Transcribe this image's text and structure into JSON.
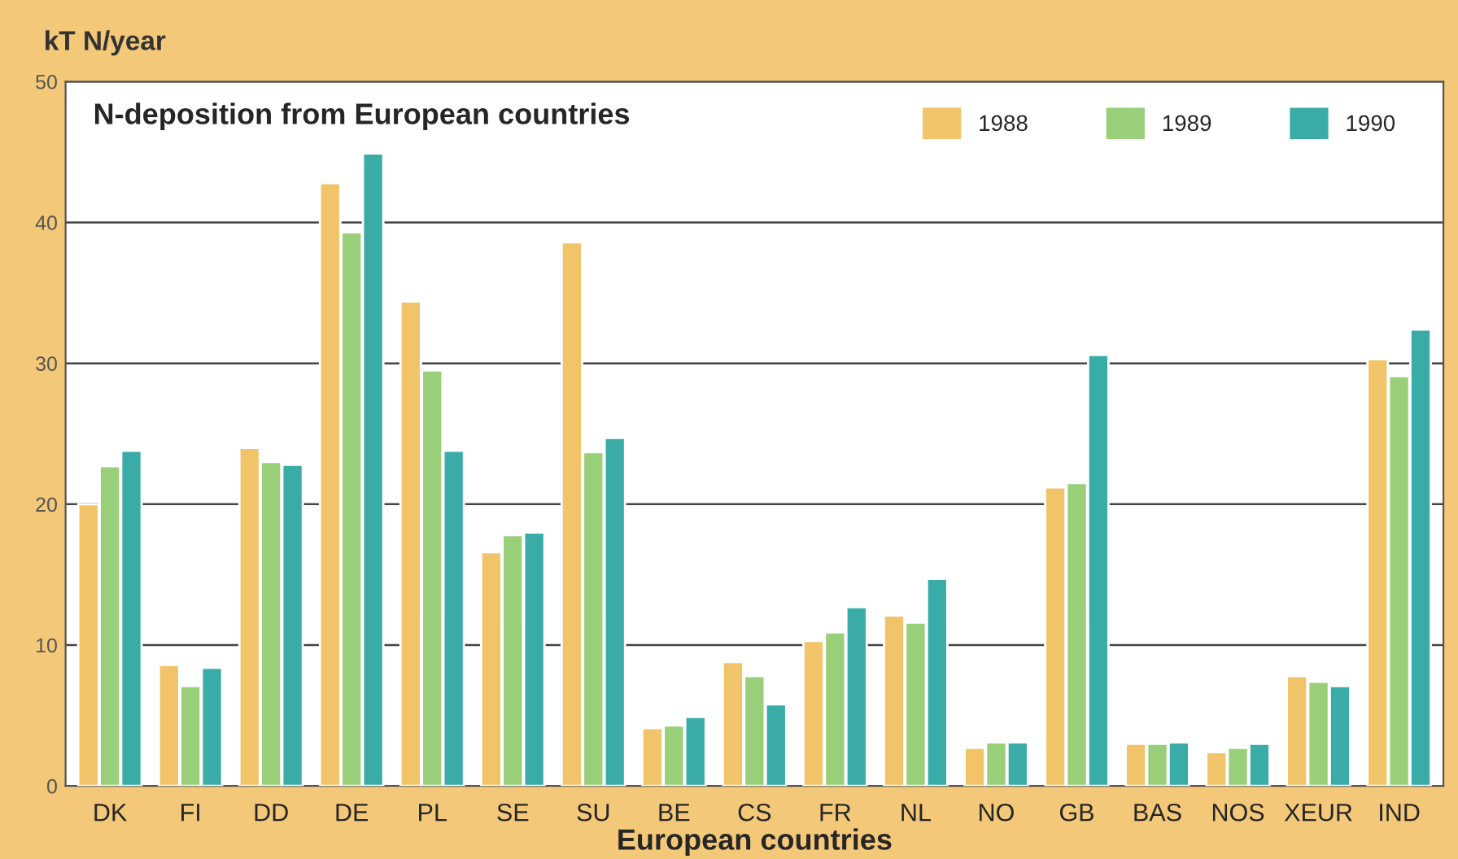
{
  "chart_data": {
    "type": "bar",
    "title": "N-deposition from European countries",
    "xlabel": "European countries",
    "ylabel": "kT N/year",
    "categories": [
      "DK",
      "FI",
      "DD",
      "DE",
      "PL",
      "SE",
      "SU",
      "BE",
      "CS",
      "FR",
      "NL",
      "NO",
      "GB",
      "BAS",
      "NOS",
      "XEUR",
      "IND"
    ],
    "series": [
      {
        "name": "1988",
        "color": "#f2c46a",
        "values": [
          20,
          8.6,
          24,
          42.8,
          34.4,
          16.6,
          38.6,
          4.1,
          8.8,
          10.3,
          12.1,
          2.7,
          21.2,
          3.0,
          2.4,
          7.8,
          30.3
        ]
      },
      {
        "name": "1989",
        "color": "#98cf78",
        "values": [
          22.7,
          7.1,
          23,
          39.3,
          29.5,
          17.8,
          23.7,
          4.3,
          7.8,
          10.9,
          11.6,
          3.1,
          21.5,
          3.0,
          2.7,
          7.4,
          29.1
        ]
      },
      {
        "name": "1990",
        "color": "#3aaca8",
        "values": [
          23.8,
          8.4,
          22.8,
          44.9,
          23.8,
          18,
          24.7,
          4.9,
          5.8,
          12.7,
          14.7,
          3.1,
          30.6,
          3.1,
          3.0,
          7.1,
          32.4
        ]
      }
    ],
    "ylim": [
      0,
      50
    ],
    "yticks": [
      0,
      10,
      20,
      30,
      40,
      50
    ],
    "grid": "y",
    "legend": "top right"
  }
}
